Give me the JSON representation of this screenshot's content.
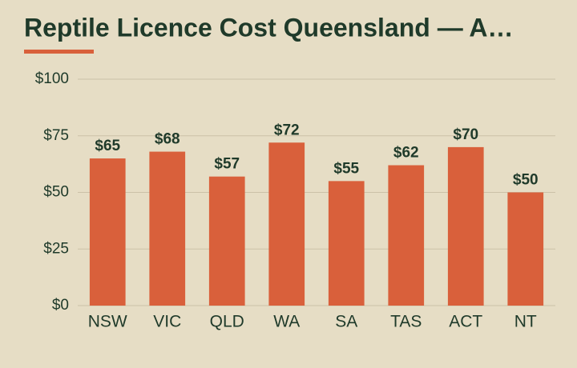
{
  "chart_data": {
    "type": "bar",
    "title": "Reptile Licence Cost Queensland — A…",
    "categories": [
      "NSW",
      "VIC",
      "QLD",
      "WA",
      "SA",
      "TAS",
      "ACT",
      "NT"
    ],
    "values": [
      65,
      68,
      57,
      72,
      55,
      62,
      70,
      50
    ],
    "value_labels": [
      "$65",
      "$68",
      "$57",
      "$72",
      "$55",
      "$62",
      "$70",
      "$50"
    ],
    "color": "#d9603b",
    "ylim": [
      0,
      100
    ],
    "yticks": [
      {
        "value": 0,
        "label": "$0"
      },
      {
        "value": 25,
        "label": "$25"
      },
      {
        "value": 50,
        "label": "$50"
      },
      {
        "value": 75,
        "label": "$75"
      },
      {
        "value": 100,
        "label": "$100"
      }
    ],
    "grid": true
  }
}
